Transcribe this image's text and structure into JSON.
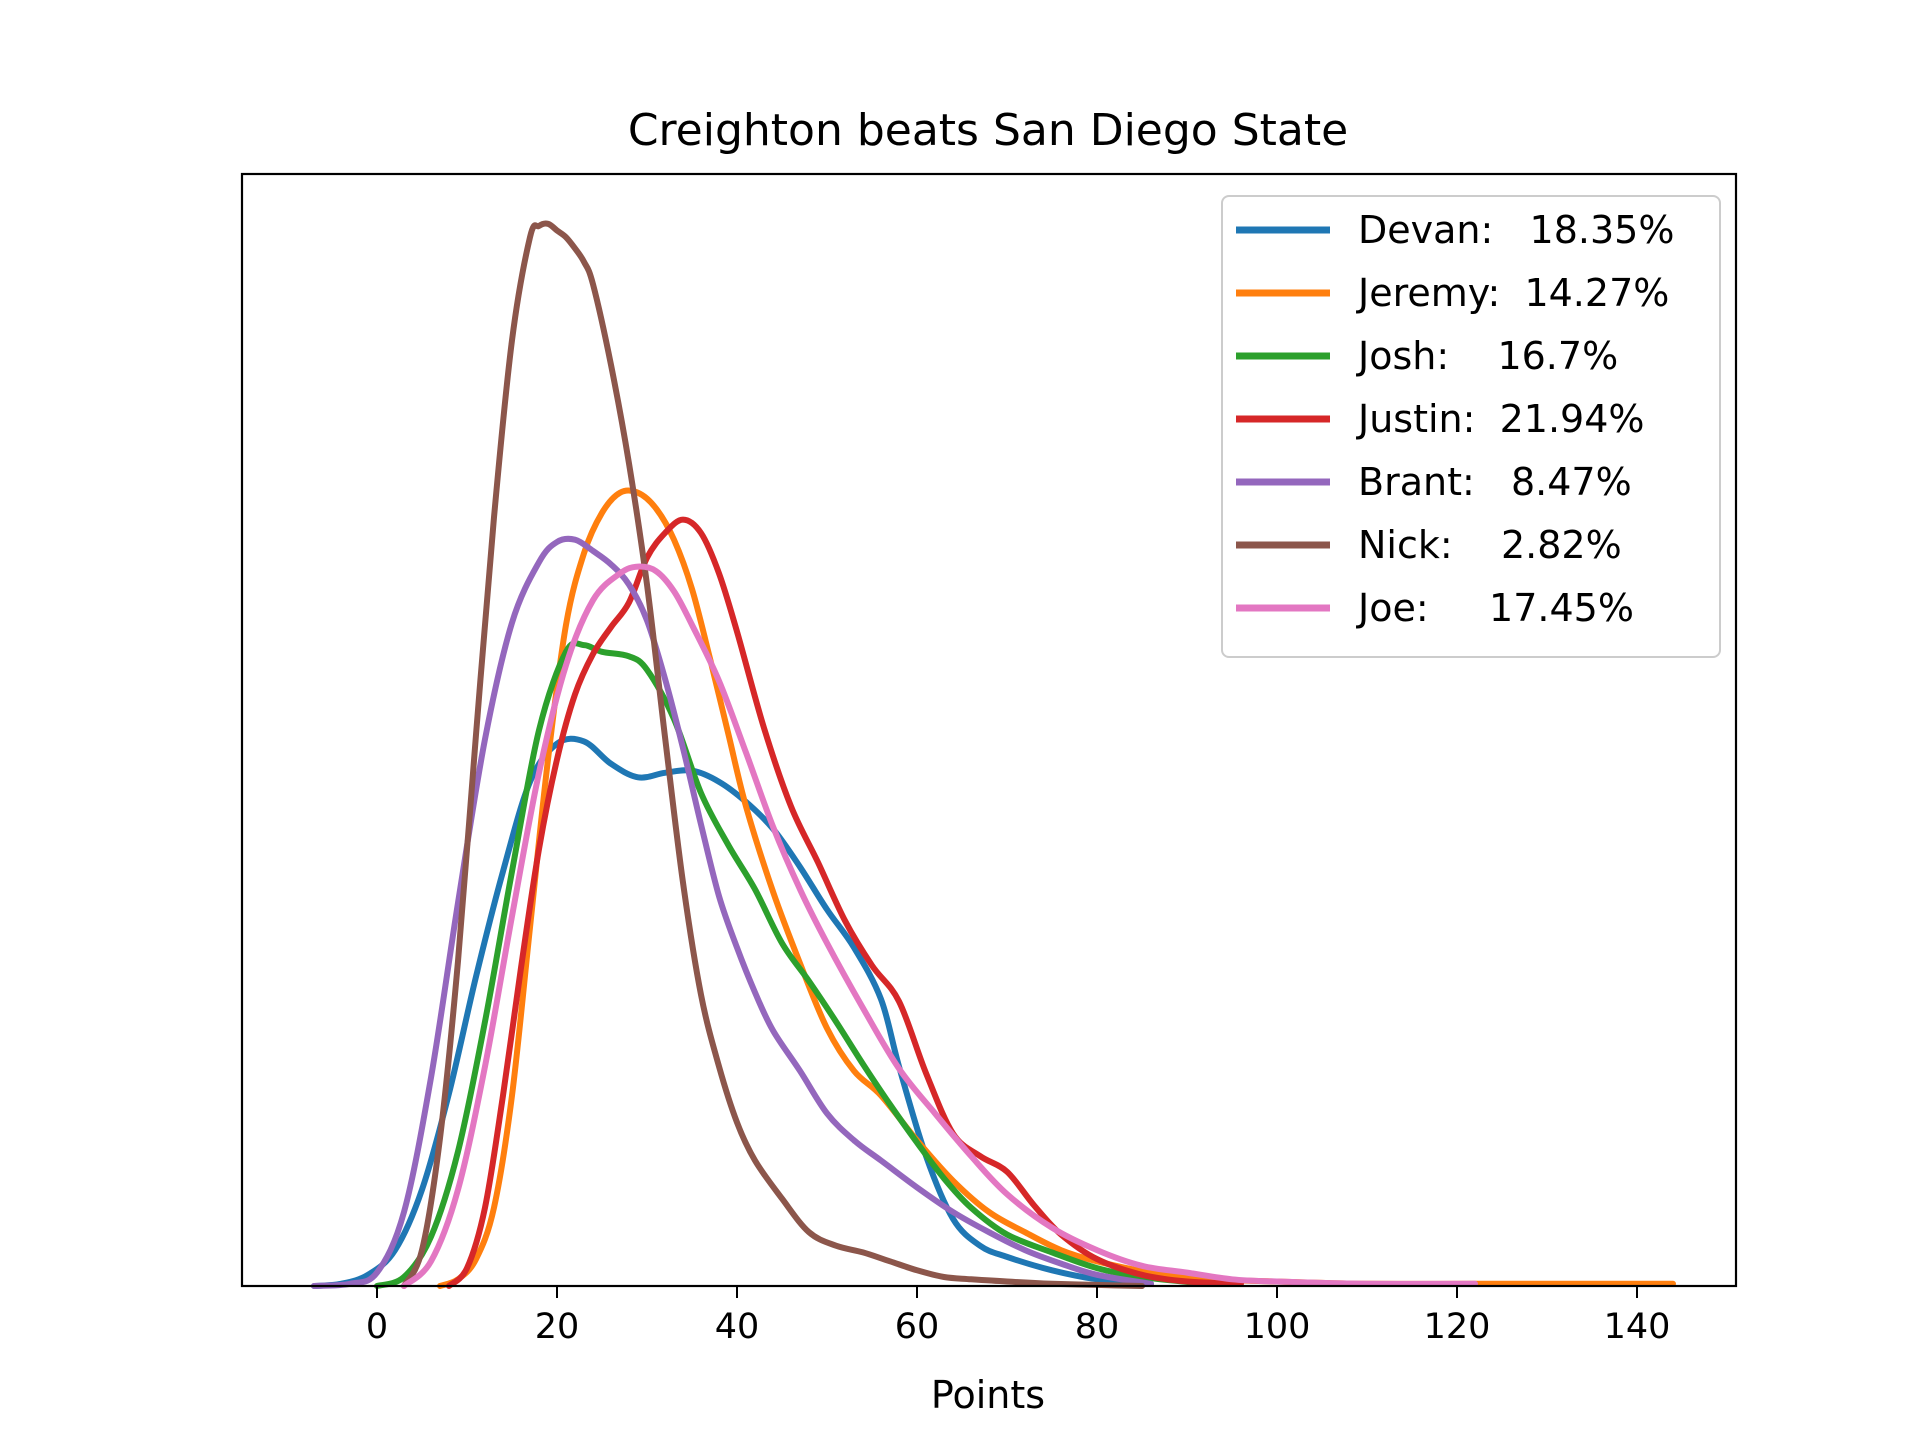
{
  "chart_data": {
    "type": "line",
    "title": "Creighton beats San Diego State",
    "xlabel": "Points",
    "ylabel": "",
    "xlim": [
      -15,
      151
    ],
    "ylim": [
      0,
      0.0473
    ],
    "xticks": [
      0,
      20,
      40,
      60,
      80,
      100,
      120,
      140
    ],
    "y_ticks_shown": false,
    "grid": false,
    "legend_position": "top-right",
    "series": [
      {
        "name": "Devan",
        "legend_label": "Devan:   18.35%",
        "color": "#1f77b4",
        "x": [
          -7,
          -4,
          -1,
          2,
          5,
          8,
          11,
          14,
          17,
          20,
          23,
          26,
          29,
          32,
          35,
          38,
          41,
          44,
          47,
          50,
          53,
          56,
          58,
          61,
          64,
          67,
          70,
          75,
          80,
          86
        ],
        "y": [
          0,
          0.0001,
          0.0005,
          0.0016,
          0.0043,
          0.0086,
          0.0138,
          0.0185,
          0.0225,
          0.0242,
          0.0243,
          0.0233,
          0.0227,
          0.0229,
          0.023,
          0.0225,
          0.0216,
          0.0204,
          0.0187,
          0.0168,
          0.0151,
          0.0128,
          0.0098,
          0.0058,
          0.003,
          0.0018,
          0.0013,
          0.0007,
          0.0003,
          0.0001
        ]
      },
      {
        "name": "Jeremy",
        "legend_label": "Jeremy:  14.27%",
        "color": "#ff7f0e",
        "x": [
          7,
          9,
          11,
          13,
          15,
          17,
          19,
          21,
          23,
          25,
          27,
          29,
          31,
          33,
          35,
          37,
          39,
          41,
          44,
          47,
          50,
          53,
          56,
          60,
          64,
          68,
          72,
          76,
          80,
          86,
          93,
          100,
          110,
          122,
          134,
          144
        ],
        "y": [
          0,
          0.0003,
          0.0012,
          0.0035,
          0.0085,
          0.016,
          0.0235,
          0.0295,
          0.0327,
          0.0345,
          0.0354,
          0.0354,
          0.0347,
          0.0333,
          0.0311,
          0.028,
          0.0247,
          0.0214,
          0.0176,
          0.0144,
          0.0115,
          0.0096,
          0.0085,
          0.0065,
          0.0047,
          0.0033,
          0.0024,
          0.0016,
          0.0011,
          0.0006,
          0.0003,
          0.0002,
          0.0001,
          0.0001,
          0.0001,
          0.0001
        ]
      },
      {
        "name": "Josh",
        "legend_label": "Josh:    16.7%",
        "color": "#2ca02c",
        "x": [
          0,
          3,
          6,
          9,
          12,
          15,
          18,
          21,
          23,
          25,
          28,
          30,
          33,
          36,
          39,
          42,
          45,
          48,
          51,
          54,
          57,
          60,
          63,
          66,
          70,
          75,
          80,
          85,
          92
        ],
        "y": [
          0,
          0.0004,
          0.0022,
          0.006,
          0.0118,
          0.0185,
          0.0248,
          0.0283,
          0.0286,
          0.0283,
          0.0281,
          0.0275,
          0.0253,
          0.022,
          0.0197,
          0.0177,
          0.0153,
          0.0136,
          0.0118,
          0.0099,
          0.0081,
          0.0064,
          0.0048,
          0.0035,
          0.0023,
          0.0015,
          0.0008,
          0.0004,
          0.0001
        ]
      },
      {
        "name": "Justin",
        "legend_label": "Justin:  21.94%",
        "color": "#d62728",
        "x": [
          8,
          10,
          12,
          14,
          16,
          18,
          20,
          22,
          24,
          26,
          28,
          30,
          32,
          34,
          36,
          38,
          40,
          43,
          46,
          49,
          52,
          55,
          58,
          61,
          64,
          67,
          70,
          73,
          76,
          80,
          85,
          90,
          96
        ],
        "y": [
          0,
          0.0008,
          0.0035,
          0.0085,
          0.0142,
          0.0195,
          0.0235,
          0.0264,
          0.0282,
          0.0294,
          0.0305,
          0.0325,
          0.0336,
          0.0342,
          0.0336,
          0.0318,
          0.0292,
          0.0249,
          0.0214,
          0.0189,
          0.0163,
          0.0143,
          0.0127,
          0.0095,
          0.0068,
          0.0058,
          0.0051,
          0.0036,
          0.0023,
          0.0012,
          0.0005,
          0.0002,
          0.0001
        ]
      },
      {
        "name": "Brant",
        "legend_label": "Brant:   8.47%",
        "color": "#9467bd",
        "x": [
          -7,
          -3,
          0,
          3,
          6,
          9,
          12,
          15,
          18,
          20,
          22,
          24,
          26,
          28,
          30,
          32,
          34,
          36,
          38,
          40,
          42,
          44,
          47,
          50,
          53,
          56,
          60,
          64,
          68,
          72,
          76,
          80,
          86
        ],
        "y": [
          0,
          0.0001,
          0.0006,
          0.0033,
          0.0093,
          0.0171,
          0.0244,
          0.0296,
          0.0323,
          0.0332,
          0.0333,
          0.0328,
          0.0322,
          0.0313,
          0.0297,
          0.0271,
          0.024,
          0.0206,
          0.0174,
          0.0151,
          0.0131,
          0.0114,
          0.0096,
          0.0077,
          0.0065,
          0.0056,
          0.0044,
          0.0033,
          0.0024,
          0.0016,
          0.001,
          0.0005,
          0.0001
        ]
      },
      {
        "name": "Nick",
        "legend_label": "Nick:    2.82%",
        "color": "#8c564b",
        "x": [
          3,
          5,
          7,
          9,
          11,
          13,
          15,
          17,
          18,
          19,
          20,
          21,
          22,
          23,
          24,
          26,
          28,
          30,
          32,
          34,
          36,
          38,
          40,
          42,
          45,
          48,
          51,
          54,
          57,
          60,
          63,
          66,
          70,
          75,
          80,
          85
        ],
        "y": [
          0,
          0.0016,
          0.0066,
          0.0145,
          0.0246,
          0.0343,
          0.0422,
          0.0468,
          0.0473,
          0.0474,
          0.0471,
          0.0468,
          0.0463,
          0.0457,
          0.0447,
          0.0411,
          0.0367,
          0.0313,
          0.0245,
          0.018,
          0.013,
          0.0098,
          0.0073,
          0.0056,
          0.0039,
          0.0024,
          0.0018,
          0.0015,
          0.0011,
          0.0007,
          0.0004,
          0.0003,
          0.0002,
          0.0001,
          5e-05,
          0.0
        ]
      },
      {
        "name": "Joe",
        "legend_label": "Joe:     17.45%",
        "color": "#e377c2",
        "x": [
          3,
          6,
          9,
          12,
          15,
          18,
          21,
          24,
          27,
          29,
          31,
          33,
          35,
          38,
          41,
          44,
          47,
          50,
          54,
          58,
          62,
          66,
          70,
          75,
          80,
          85,
          90,
          95,
          100,
          110,
          122
        ],
        "y": [
          0,
          0.0011,
          0.0043,
          0.0098,
          0.0165,
          0.0229,
          0.0277,
          0.0306,
          0.0318,
          0.0321,
          0.0319,
          0.031,
          0.0295,
          0.027,
          0.0238,
          0.0205,
          0.0177,
          0.0153,
          0.0124,
          0.0097,
          0.0077,
          0.0058,
          0.0041,
          0.0026,
          0.0016,
          0.0009,
          0.0006,
          0.0003,
          0.0002,
          0.0001,
          0.0001
        ]
      }
    ]
  }
}
